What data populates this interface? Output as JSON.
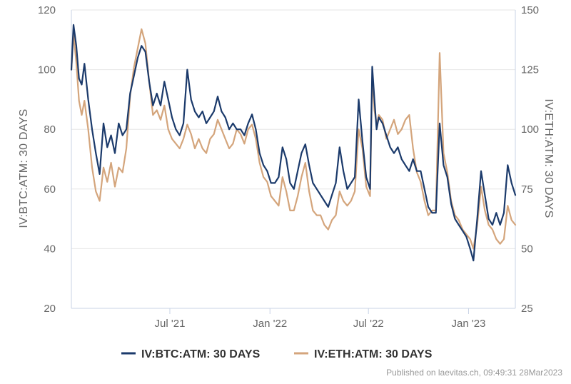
{
  "chart_data": {
    "type": "line",
    "x_axis": {
      "tick_labels": [
        "Jul '21",
        "Jan '22",
        "Jul '22",
        "Jan '23"
      ],
      "tick_dates": [
        "2021-07-01",
        "2022-01-01",
        "2022-07-01",
        "2023-01-01"
      ],
      "range": [
        "2021-01-01",
        "2023-03-28"
      ]
    },
    "y_left": {
      "label": "IV:BTC:ATM: 30 DAYS",
      "range": [
        20,
        120
      ],
      "ticks": [
        20,
        40,
        60,
        80,
        100,
        120
      ]
    },
    "y_right": {
      "label": "IV:ETH:ATM: 30 DAYS",
      "range": [
        25,
        150
      ],
      "ticks": [
        25,
        50,
        75,
        100,
        125,
        150
      ]
    },
    "grid": "horizontal",
    "legend_position": "bottom-center",
    "series": [
      {
        "name": "IV:BTC:ATM: 30 DAYS",
        "axis": "left",
        "color": "#1b3a6b",
        "points": [
          [
            "2021-01-01",
            100
          ],
          [
            "2021-01-05",
            115
          ],
          [
            "2021-01-10",
            108
          ],
          [
            "2021-01-15",
            97
          ],
          [
            "2021-01-20",
            95
          ],
          [
            "2021-01-25",
            102
          ],
          [
            "2021-02-01",
            90
          ],
          [
            "2021-02-08",
            80
          ],
          [
            "2021-02-15",
            72
          ],
          [
            "2021-02-22",
            65
          ],
          [
            "2021-03-01",
            82
          ],
          [
            "2021-03-08",
            74
          ],
          [
            "2021-03-15",
            78
          ],
          [
            "2021-03-22",
            72
          ],
          [
            "2021-03-29",
            82
          ],
          [
            "2021-04-05",
            78
          ],
          [
            "2021-04-12",
            80
          ],
          [
            "2021-04-19",
            92
          ],
          [
            "2021-04-26",
            98
          ],
          [
            "2021-05-03",
            104
          ],
          [
            "2021-05-10",
            108
          ],
          [
            "2021-05-17",
            106
          ],
          [
            "2021-05-24",
            96
          ],
          [
            "2021-05-31",
            88
          ],
          [
            "2021-06-07",
            92
          ],
          [
            "2021-06-14",
            88
          ],
          [
            "2021-06-21",
            96
          ],
          [
            "2021-06-28",
            90
          ],
          [
            "2021-07-05",
            84
          ],
          [
            "2021-07-12",
            80
          ],
          [
            "2021-07-19",
            78
          ],
          [
            "2021-07-26",
            82
          ],
          [
            "2021-08-02",
            100
          ],
          [
            "2021-08-09",
            90
          ],
          [
            "2021-08-16",
            86
          ],
          [
            "2021-08-23",
            84
          ],
          [
            "2021-08-30",
            86
          ],
          [
            "2021-09-06",
            82
          ],
          [
            "2021-09-13",
            84
          ],
          [
            "2021-09-20",
            86
          ],
          [
            "2021-09-27",
            91
          ],
          [
            "2021-10-04",
            86
          ],
          [
            "2021-10-11",
            84
          ],
          [
            "2021-10-18",
            80
          ],
          [
            "2021-10-25",
            82
          ],
          [
            "2021-11-01",
            80
          ],
          [
            "2021-11-08",
            80
          ],
          [
            "2021-11-15",
            78
          ],
          [
            "2021-11-22",
            82
          ],
          [
            "2021-11-29",
            85
          ],
          [
            "2021-12-06",
            80
          ],
          [
            "2021-12-13",
            72
          ],
          [
            "2021-12-20",
            68
          ],
          [
            "2021-12-27",
            66
          ],
          [
            "2022-01-03",
            62
          ],
          [
            "2022-01-10",
            62
          ],
          [
            "2022-01-17",
            64
          ],
          [
            "2022-01-24",
            74
          ],
          [
            "2022-01-31",
            70
          ],
          [
            "2022-02-07",
            62
          ],
          [
            "2022-02-14",
            60
          ],
          [
            "2022-02-21",
            66
          ],
          [
            "2022-02-28",
            72
          ],
          [
            "2022-03-07",
            75
          ],
          [
            "2022-03-14",
            68
          ],
          [
            "2022-03-21",
            62
          ],
          [
            "2022-03-28",
            60
          ],
          [
            "2022-04-04",
            58
          ],
          [
            "2022-04-11",
            56
          ],
          [
            "2022-04-18",
            54
          ],
          [
            "2022-04-25",
            58
          ],
          [
            "2022-05-02",
            62
          ],
          [
            "2022-05-09",
            74
          ],
          [
            "2022-05-16",
            66
          ],
          [
            "2022-05-23",
            60
          ],
          [
            "2022-05-30",
            62
          ],
          [
            "2022-06-06",
            64
          ],
          [
            "2022-06-13",
            90
          ],
          [
            "2022-06-20",
            76
          ],
          [
            "2022-06-27",
            64
          ],
          [
            "2022-07-04",
            60
          ],
          [
            "2022-07-08",
            101
          ],
          [
            "2022-07-12",
            90
          ],
          [
            "2022-07-16",
            80
          ],
          [
            "2022-07-20",
            84
          ],
          [
            "2022-07-27",
            82
          ],
          [
            "2022-08-03",
            78
          ],
          [
            "2022-08-10",
            74
          ],
          [
            "2022-08-17",
            72
          ],
          [
            "2022-08-24",
            74
          ],
          [
            "2022-08-31",
            70
          ],
          [
            "2022-09-07",
            68
          ],
          [
            "2022-09-14",
            66
          ],
          [
            "2022-09-21",
            70
          ],
          [
            "2022-09-28",
            66
          ],
          [
            "2022-10-05",
            66
          ],
          [
            "2022-10-12",
            60
          ],
          [
            "2022-10-19",
            54
          ],
          [
            "2022-10-26",
            52
          ],
          [
            "2022-11-02",
            52
          ],
          [
            "2022-11-09",
            82
          ],
          [
            "2022-11-16",
            68
          ],
          [
            "2022-11-23",
            64
          ],
          [
            "2022-11-30",
            55
          ],
          [
            "2022-12-07",
            50
          ],
          [
            "2022-12-14",
            48
          ],
          [
            "2022-12-21",
            46
          ],
          [
            "2022-12-28",
            44
          ],
          [
            "2023-01-04",
            40
          ],
          [
            "2023-01-10",
            36
          ],
          [
            "2023-01-17",
            50
          ],
          [
            "2023-01-24",
            66
          ],
          [
            "2023-01-31",
            58
          ],
          [
            "2023-02-07",
            50
          ],
          [
            "2023-02-14",
            48
          ],
          [
            "2023-02-21",
            52
          ],
          [
            "2023-02-28",
            48
          ],
          [
            "2023-03-07",
            52
          ],
          [
            "2023-03-14",
            68
          ],
          [
            "2023-03-21",
            62
          ],
          [
            "2023-03-28",
            58
          ]
        ]
      },
      {
        "name": "IV:ETH:ATM: 30 DAYS",
        "axis": "right",
        "color": "#d4a57c",
        "points": [
          [
            "2021-01-01",
            125
          ],
          [
            "2021-01-05",
            140
          ],
          [
            "2021-01-10",
            128
          ],
          [
            "2021-01-15",
            112
          ],
          [
            "2021-01-20",
            106
          ],
          [
            "2021-01-25",
            112
          ],
          [
            "2021-02-01",
            100
          ],
          [
            "2021-02-08",
            84
          ],
          [
            "2021-02-15",
            74
          ],
          [
            "2021-02-22",
            70
          ],
          [
            "2021-03-01",
            84
          ],
          [
            "2021-03-08",
            78
          ],
          [
            "2021-03-15",
            86
          ],
          [
            "2021-03-22",
            76
          ],
          [
            "2021-03-29",
            84
          ],
          [
            "2021-04-05",
            82
          ],
          [
            "2021-04-12",
            92
          ],
          [
            "2021-04-19",
            114
          ],
          [
            "2021-04-26",
            126
          ],
          [
            "2021-05-03",
            134
          ],
          [
            "2021-05-10",
            142
          ],
          [
            "2021-05-17",
            136
          ],
          [
            "2021-05-24",
            120
          ],
          [
            "2021-05-31",
            106
          ],
          [
            "2021-06-07",
            108
          ],
          [
            "2021-06-14",
            104
          ],
          [
            "2021-06-21",
            110
          ],
          [
            "2021-06-28",
            100
          ],
          [
            "2021-07-05",
            96
          ],
          [
            "2021-07-12",
            94
          ],
          [
            "2021-07-19",
            92
          ],
          [
            "2021-07-26",
            96
          ],
          [
            "2021-08-02",
            102
          ],
          [
            "2021-08-09",
            98
          ],
          [
            "2021-08-16",
            92
          ],
          [
            "2021-08-23",
            96
          ],
          [
            "2021-08-30",
            92
          ],
          [
            "2021-09-06",
            90
          ],
          [
            "2021-09-13",
            96
          ],
          [
            "2021-09-20",
            98
          ],
          [
            "2021-09-27",
            104
          ],
          [
            "2021-10-04",
            100
          ],
          [
            "2021-10-11",
            96
          ],
          [
            "2021-10-18",
            92
          ],
          [
            "2021-10-25",
            94
          ],
          [
            "2021-11-01",
            100
          ],
          [
            "2021-11-08",
            98
          ],
          [
            "2021-11-15",
            94
          ],
          [
            "2021-11-22",
            100
          ],
          [
            "2021-11-29",
            102
          ],
          [
            "2021-12-06",
            96
          ],
          [
            "2021-12-13",
            86
          ],
          [
            "2021-12-20",
            80
          ],
          [
            "2021-12-27",
            78
          ],
          [
            "2022-01-03",
            72
          ],
          [
            "2022-01-10",
            70
          ],
          [
            "2022-01-17",
            68
          ],
          [
            "2022-01-24",
            80
          ],
          [
            "2022-01-31",
            74
          ],
          [
            "2022-02-07",
            66
          ],
          [
            "2022-02-14",
            66
          ],
          [
            "2022-02-21",
            72
          ],
          [
            "2022-02-28",
            80
          ],
          [
            "2022-03-07",
            86
          ],
          [
            "2022-03-14",
            74
          ],
          [
            "2022-03-21",
            66
          ],
          [
            "2022-03-28",
            64
          ],
          [
            "2022-04-04",
            64
          ],
          [
            "2022-04-11",
            60
          ],
          [
            "2022-04-18",
            58
          ],
          [
            "2022-04-25",
            62
          ],
          [
            "2022-05-02",
            64
          ],
          [
            "2022-05-09",
            74
          ],
          [
            "2022-05-16",
            70
          ],
          [
            "2022-05-23",
            68
          ],
          [
            "2022-05-30",
            70
          ],
          [
            "2022-06-06",
            74
          ],
          [
            "2022-06-13",
            100
          ],
          [
            "2022-06-20",
            92
          ],
          [
            "2022-06-27",
            76
          ],
          [
            "2022-07-04",
            72
          ],
          [
            "2022-07-08",
            122
          ],
          [
            "2022-07-12",
            108
          ],
          [
            "2022-07-16",
            102
          ],
          [
            "2022-07-20",
            106
          ],
          [
            "2022-07-27",
            104
          ],
          [
            "2022-08-03",
            96
          ],
          [
            "2022-08-10",
            100
          ],
          [
            "2022-08-17",
            104
          ],
          [
            "2022-08-24",
            98
          ],
          [
            "2022-08-31",
            100
          ],
          [
            "2022-09-07",
            104
          ],
          [
            "2022-09-14",
            106
          ],
          [
            "2022-09-21",
            92
          ],
          [
            "2022-09-28",
            82
          ],
          [
            "2022-10-05",
            78
          ],
          [
            "2022-10-12",
            70
          ],
          [
            "2022-10-19",
            64
          ],
          [
            "2022-10-26",
            66
          ],
          [
            "2022-11-02",
            66
          ],
          [
            "2022-11-09",
            132
          ],
          [
            "2022-11-16",
            90
          ],
          [
            "2022-11-23",
            82
          ],
          [
            "2022-11-30",
            70
          ],
          [
            "2022-12-07",
            64
          ],
          [
            "2022-12-14",
            62
          ],
          [
            "2022-12-21",
            58
          ],
          [
            "2022-12-28",
            56
          ],
          [
            "2023-01-04",
            54
          ],
          [
            "2023-01-10",
            50
          ],
          [
            "2023-01-17",
            60
          ],
          [
            "2023-01-24",
            76
          ],
          [
            "2023-01-31",
            66
          ],
          [
            "2023-02-07",
            60
          ],
          [
            "2023-02-14",
            58
          ],
          [
            "2023-02-21",
            54
          ],
          [
            "2023-02-28",
            52
          ],
          [
            "2023-03-07",
            54
          ],
          [
            "2023-03-14",
            68
          ],
          [
            "2023-03-21",
            62
          ],
          [
            "2023-03-28",
            60
          ]
        ]
      }
    ]
  },
  "legend": {
    "items": [
      {
        "label": "IV:BTC:ATM: 30 DAYS",
        "color": "#1b3a6b"
      },
      {
        "label": "IV:ETH:ATM: 30 DAYS",
        "color": "#d4a57c"
      }
    ]
  },
  "credit": "Published on laevitas.ch, 09:49:31 28Mar2023"
}
